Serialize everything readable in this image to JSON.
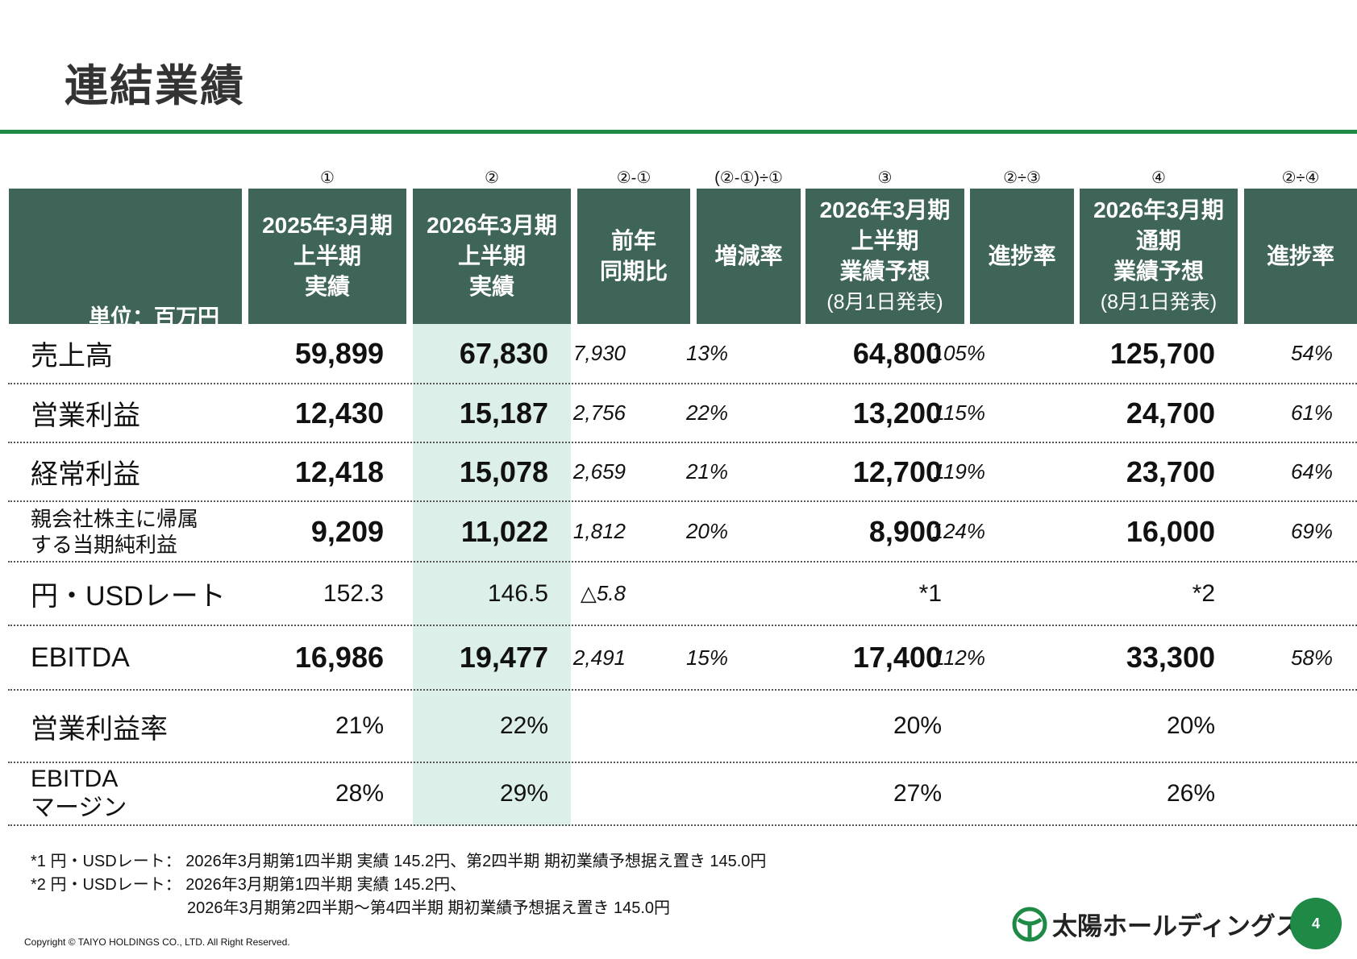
{
  "title": "連結業績",
  "unit": "単位：百万円",
  "formulas": [
    "①",
    "②",
    "②-①",
    "(②-①)÷①",
    "③",
    "②÷③",
    "④",
    "②÷④"
  ],
  "headers": [
    {
      "lines": [
        "2025年3月期",
        "上半期",
        "実績"
      ]
    },
    {
      "lines": [
        "2026年3月期",
        "上半期",
        "実績"
      ]
    },
    {
      "lines": [
        "前年",
        "同期比"
      ]
    },
    {
      "lines": [
        "増減率"
      ]
    },
    {
      "lines": [
        "2026年3月期",
        "上半期",
        "業績予想"
      ],
      "note": "(8月1日発表)"
    },
    {
      "lines": [
        "進捗率"
      ]
    },
    {
      "lines": [
        "2026年3月期",
        "通期",
        "業績予想"
      ],
      "note": "(8月1日発表)"
    },
    {
      "lines": [
        "進捗率"
      ]
    }
  ],
  "rows": [
    {
      "label": "売上高",
      "values": [
        "59,899",
        "67,830",
        "7,930",
        "13%",
        "64,800",
        "105%",
        "125,700",
        "54%"
      ]
    },
    {
      "label": "営業利益",
      "values": [
        "12,430",
        "15,187",
        "2,756",
        "22%",
        "13,200",
        "115%",
        "24,700",
        "61%"
      ]
    },
    {
      "label": "経常利益",
      "values": [
        "12,418",
        "15,078",
        "2,659",
        "21%",
        "12,700",
        "119%",
        "23,700",
        "64%"
      ]
    },
    {
      "label": "親会社株主に帰属\nする当期純利益",
      "values": [
        "9,209",
        "11,022",
        "1,812",
        "20%",
        "8,900",
        "124%",
        "16,000",
        "69%"
      ]
    },
    {
      "label": "円・USDレート",
      "values": [
        "152.3",
        "146.5",
        "△5.8",
        "",
        "*1",
        "",
        "*2",
        ""
      ]
    },
    {
      "label": "EBITDA",
      "values": [
        "16,986",
        "19,477",
        "2,491",
        "15%",
        "17,400",
        "112%",
        "33,300",
        "58%"
      ]
    },
    {
      "label": "営業利益率",
      "values": [
        "21%",
        "22%",
        "",
        "",
        "20%",
        "",
        "20%",
        ""
      ]
    },
    {
      "label": "EBITDA\nマージン",
      "values": [
        "28%",
        "29%",
        "",
        "",
        "27%",
        "",
        "26%",
        ""
      ]
    }
  ],
  "notes": [
    "*1 円・USDレート： 2026年3月期第1四半期 実績 145.2円、第2四半期 期初業績予想据え置き 145.0円",
    "*2 円・USDレート： 2026年3月期第1四半期 実績 145.2円、",
    "2026年3月期第2四半期～第4四半期 期初業績予想据え置き 145.0円"
  ],
  "copyright": "Copyright © TAIYO HOLDINGS CO., LTD.  All Right Reserved.",
  "logo_text": "太陽ホールディングス",
  "page_number": "4",
  "colors": {
    "header": "#3f6558",
    "highlight": "#dcefe8",
    "accent": "#1e8a46"
  }
}
